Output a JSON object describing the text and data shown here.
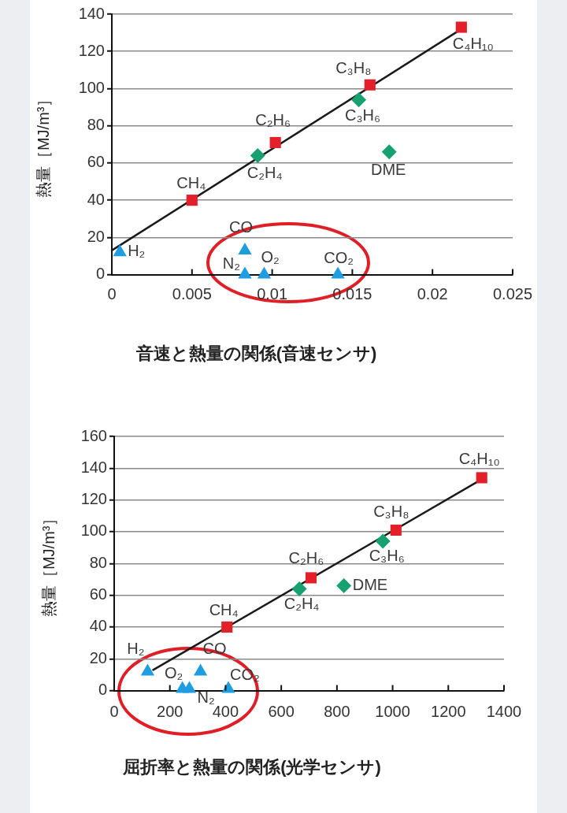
{
  "chart_data": [
    {
      "type": "scatter",
      "title": "音速と熱量の関係(音速センサ)",
      "ylabel": "熱量［MJ/m³］",
      "xlim": [
        0,
        0.025
      ],
      "xticks": [
        0,
        0.005,
        0.01,
        0.015,
        0.02,
        0.025
      ],
      "ylim": [
        0,
        140
      ],
      "yticks": [
        0,
        20,
        40,
        60,
        80,
        100,
        120,
        140
      ],
      "grid": "y",
      "series": [
        {
          "type": "scatter",
          "color": "#e3202a",
          "marker": "square",
          "x": [
            0.005,
            0.0102,
            0.0161,
            0.0218
          ],
          "values": [
            40,
            71,
            102,
            133
          ]
        },
        {
          "type": "scatter",
          "color": "#17a070",
          "marker": "diamond",
          "x": [
            0.0091,
            0.0154,
            0.0173
          ],
          "values": [
            64,
            94,
            66
          ]
        },
        {
          "type": "scatter",
          "color": "#1e9ee0",
          "marker": "triangle",
          "x": [
            0.0005,
            0.0083,
            0.0083,
            0.0095,
            0.0141
          ],
          "values": [
            12,
            13,
            0,
            0,
            0
          ]
        },
        {
          "type": "line",
          "color": "#1a1a1a",
          "marker": "none",
          "x": [
            0,
            0.0218
          ],
          "values": [
            13,
            132
          ]
        }
      ],
      "annotations": [
        {
          "text": "H₂",
          "x": 0.0005,
          "y": 12
        },
        {
          "text": "CO",
          "x": 0.0083,
          "y": 13
        },
        {
          "text": "N₂",
          "x": 0.0083,
          "y": 0
        },
        {
          "text": "O₂",
          "x": 0.0095,
          "y": 0
        },
        {
          "text": "CO₂",
          "x": 0.0141,
          "y": 0
        },
        {
          "text": "CH₄",
          "x": 0.005,
          "y": 40
        },
        {
          "text": "C₂H₄",
          "x": 0.0091,
          "y": 64
        },
        {
          "text": "C₂H₆",
          "x": 0.0102,
          "y": 71
        },
        {
          "text": "C₃H₆",
          "x": 0.0154,
          "y": 94
        },
        {
          "text": "C₃H₈",
          "x": 0.0161,
          "y": 102
        },
        {
          "text": "DME",
          "x": 0.0173,
          "y": 66
        },
        {
          "text": "C₄H₁₀",
          "x": 0.0218,
          "y": 133
        }
      ]
    },
    {
      "type": "scatter",
      "title": "屈折率と熱量の関係(光学センサ)",
      "ylabel": "熱量［MJ/m³］",
      "xlim": [
        0,
        1400
      ],
      "xticks": [
        0,
        200,
        400,
        600,
        800,
        1000,
        1200,
        1400
      ],
      "ylim": [
        0,
        160
      ],
      "yticks": [
        0,
        20,
        40,
        60,
        80,
        100,
        120,
        140,
        160
      ],
      "grid": "y",
      "series": [
        {
          "type": "scatter",
          "color": "#e3202a",
          "marker": "square",
          "x": [
            405,
            707,
            1012,
            1320
          ],
          "values": [
            40,
            71,
            101,
            134
          ]
        },
        {
          "type": "scatter",
          "color": "#17a070",
          "marker": "diamond",
          "x": [
            665,
            825,
            965
          ],
          "values": [
            64,
            66,
            94
          ]
        },
        {
          "type": "scatter",
          "color": "#1e9ee0",
          "marker": "triangle",
          "x": [
            120,
            245,
            270,
            310,
            410
          ],
          "values": [
            12,
            1,
            1,
            12,
            1
          ]
        },
        {
          "type": "line",
          "color": "#1a1a1a",
          "marker": "none",
          "x": [
            140,
            1320
          ],
          "values": [
            13,
            133
          ]
        }
      ],
      "annotations": [
        {
          "text": "H₂",
          "x": 120,
          "y": 12
        },
        {
          "text": "O₂",
          "x": 245,
          "y": 1
        },
        {
          "text": "N₂",
          "x": 270,
          "y": 1
        },
        {
          "text": "CO",
          "x": 310,
          "y": 12
        },
        {
          "text": "CO₂",
          "x": 410,
          "y": 1
        },
        {
          "text": "CH₄",
          "x": 405,
          "y": 40
        },
        {
          "text": "C₂H₄",
          "x": 665,
          "y": 64
        },
        {
          "text": "C₂H₆",
          "x": 707,
          "y": 71
        },
        {
          "text": "DME",
          "x": 825,
          "y": 66
        },
        {
          "text": "C₃H₆",
          "x": 965,
          "y": 94
        },
        {
          "text": "C₃H₈",
          "x": 1012,
          "y": 101
        },
        {
          "text": "C₄H₁₀",
          "x": 1320,
          "y": 134
        }
      ]
    }
  ]
}
